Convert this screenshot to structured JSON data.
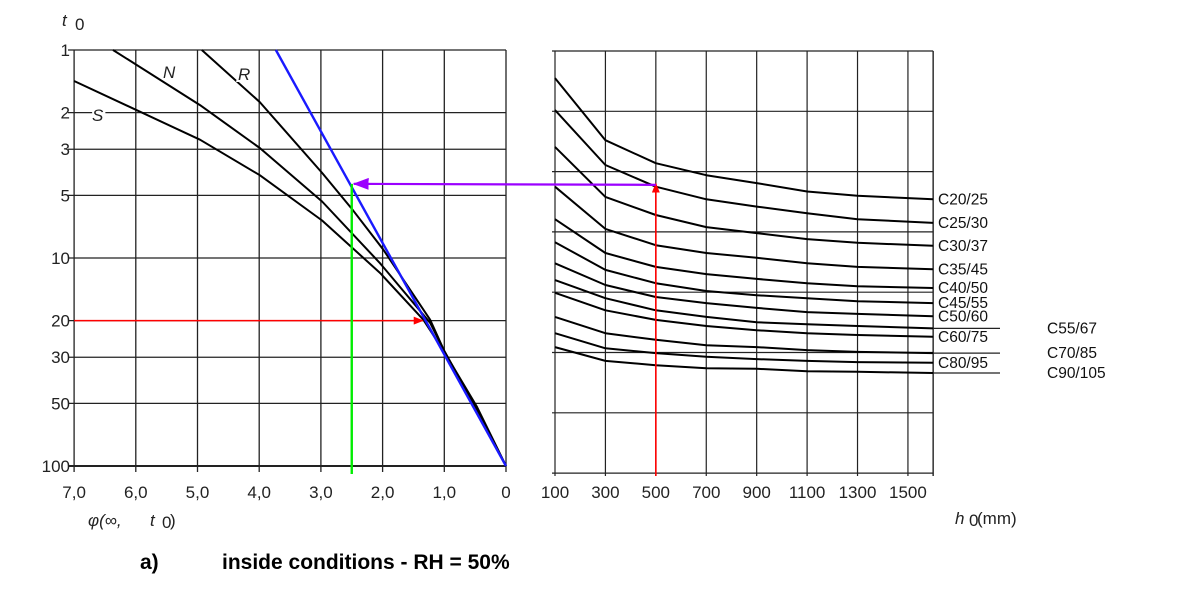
{
  "chart_data": [
    {
      "type": "line",
      "panel": "left",
      "y_scale": "log",
      "ylabel": "t",
      "ylabel_sub": "0",
      "xlabel": "φ(∞, ",
      "xlabel_var": "t",
      "xlabel_sub": "0",
      "xlabel_close": ")",
      "xlim": [
        7,
        0
      ],
      "ylim": [
        1,
        100
      ],
      "x_ticks": [
        7,
        6,
        5,
        4,
        3,
        2,
        1,
        0
      ],
      "x_tick_labels": [
        "7,0",
        "6,0",
        "5,0",
        "4,0",
        "3,0",
        "2,0",
        "1,0",
        "0"
      ],
      "y_ticks": [
        1,
        2,
        3,
        5,
        10,
        20,
        30,
        50,
        100
      ],
      "y_tick_labels": [
        "1",
        "2",
        "3",
        "5",
        "10",
        "20",
        "30",
        "50",
        "100"
      ],
      "grid": true,
      "series": [
        {
          "name": "S",
          "x": [
            7.0,
            4.96,
            3.99,
            2.98,
            2.04,
            1.34,
            0.99,
            0.47,
            0
          ],
          "y": [
            1.41,
            2.7,
            4.0,
            6.6,
            11.8,
            19.8,
            28.6,
            52,
            100
          ]
        },
        {
          "name": "N",
          "x": [
            6.37,
            4.96,
            3.99,
            2.98,
            2.04,
            1.23,
            1.0,
            0.5,
            0
          ],
          "y": [
            1,
            1.84,
            2.96,
            5.35,
            10.6,
            20.5,
            28,
            52,
            100
          ]
        },
        {
          "name": "R",
          "x": [
            4.93,
            3.99,
            2.98,
            2.48,
            1.99,
            1.23,
            1.0,
            0.5,
            0
          ],
          "y": [
            1,
            1.78,
            3.9,
            5.9,
            9.1,
            19.8,
            28,
            52,
            100
          ]
        }
      ],
      "annotations": {
        "blue_line": {
          "x": [
            3.73,
            0
          ],
          "y": [
            1,
            100
          ],
          "color": "#1a1aff"
        },
        "red_horizontal": {
          "t0": 20,
          "from_phi": 7.0,
          "to_phi": 1.35,
          "color": "#ff0000"
        },
        "green_vertical": {
          "phi": 2.5,
          "from_t0": 4.4,
          "to_t0": 100,
          "color": "#00ee00"
        },
        "purple_arrow": {
          "t0": 4.4,
          "to_phi": 2.5,
          "from_h0": 500,
          "color": "#9b00ff"
        }
      }
    },
    {
      "type": "line",
      "panel": "right",
      "xlabel": "h",
      "xlabel_sub": "0",
      "xlabel_unit": "(mm)",
      "xlim": [
        100,
        1600
      ],
      "ylim_grid_units": [
        0,
        7
      ],
      "x_ticks": [
        100,
        300,
        500,
        700,
        900,
        1100,
        1300,
        1500
      ],
      "x_tick_labels": [
        "100",
        "300",
        "500",
        "700",
        "900",
        "1100",
        "1300",
        "1500"
      ],
      "grid": true,
      "x": [
        100,
        300,
        500,
        700,
        900,
        1100,
        1300,
        1600
      ],
      "series": [
        {
          "name": "C20/25",
          "y": [
            0.45,
            1.48,
            1.86,
            2.06,
            2.19,
            2.33,
            2.4,
            2.46
          ]
        },
        {
          "name": "C25/30",
          "y": [
            0.98,
            1.89,
            2.25,
            2.46,
            2.58,
            2.69,
            2.79,
            2.85
          ]
        },
        {
          "name": "C30/37",
          "y": [
            1.59,
            2.42,
            2.72,
            2.92,
            3.02,
            3.12,
            3.18,
            3.23
          ]
        },
        {
          "name": "C35/45",
          "y": [
            2.25,
            2.95,
            3.22,
            3.35,
            3.43,
            3.52,
            3.58,
            3.62
          ]
        },
        {
          "name": "C40/50",
          "y": [
            2.79,
            3.35,
            3.58,
            3.7,
            3.78,
            3.85,
            3.9,
            3.93
          ]
        },
        {
          "name": "C45/55",
          "y": [
            3.17,
            3.63,
            3.85,
            3.98,
            4.05,
            4.1,
            4.15,
            4.18
          ]
        },
        {
          "name": "C50/60",
          "y": [
            3.52,
            3.88,
            4.08,
            4.18,
            4.26,
            4.33,
            4.36,
            4.4
          ]
        },
        {
          "name": "C55/67",
          "y": [
            3.8,
            4.1,
            4.3,
            4.41,
            4.5,
            4.53,
            4.56,
            4.6
          ]
        },
        {
          "name": "C60/75",
          "y": [
            4.01,
            4.3,
            4.46,
            4.56,
            4.63,
            4.68,
            4.71,
            4.74
          ]
        },
        {
          "name": "C70/85",
          "y": [
            4.41,
            4.68,
            4.79,
            4.88,
            4.91,
            4.96,
            4.99,
            5.01
          ]
        },
        {
          "name": "C80/95",
          "y": [
            4.68,
            4.93,
            5.01,
            5.07,
            5.11,
            5.14,
            5.16,
            5.17
          ]
        },
        {
          "name": "C90/105",
          "y": [
            4.91,
            5.14,
            5.21,
            5.26,
            5.27,
            5.31,
            5.32,
            5.34
          ]
        }
      ],
      "leader_labels": [
        "C55/67",
        "C70/85",
        "C90/105"
      ],
      "annotations": {
        "red_vertical": {
          "h0": 500,
          "to_grid_units": 2.2,
          "color": "#ff0000"
        }
      }
    }
  ],
  "caption": {
    "label": "a)",
    "text": "inside conditions -  RH = 50%"
  }
}
